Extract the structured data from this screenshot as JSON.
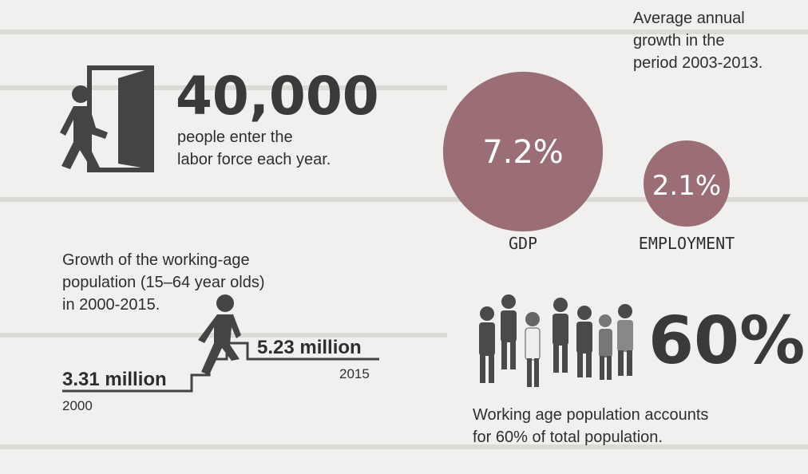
{
  "labor": {
    "number": "40,000",
    "text": [
      "people enter the",
      "labor force each year."
    ]
  },
  "working_age": {
    "title": [
      "Growth of the working-age",
      "population (15–64 year olds)",
      "in 2000-2015."
    ],
    "start": {
      "value": "3.31 million",
      "year": "2000"
    },
    "end": {
      "value": "5.23 million",
      "year": "2015"
    }
  },
  "growth": {
    "title": [
      "Average annual",
      "growth in the",
      "period 2003-2013."
    ],
    "items": [
      {
        "value": 7.2,
        "label": "7.2%",
        "name": "GDP"
      },
      {
        "value": 2.1,
        "label": "2.1%",
        "name": "EMPLOYMENT"
      }
    ]
  },
  "share": {
    "number": "60%",
    "text": [
      "Working age population accounts",
      "for 60% of total population."
    ]
  }
}
